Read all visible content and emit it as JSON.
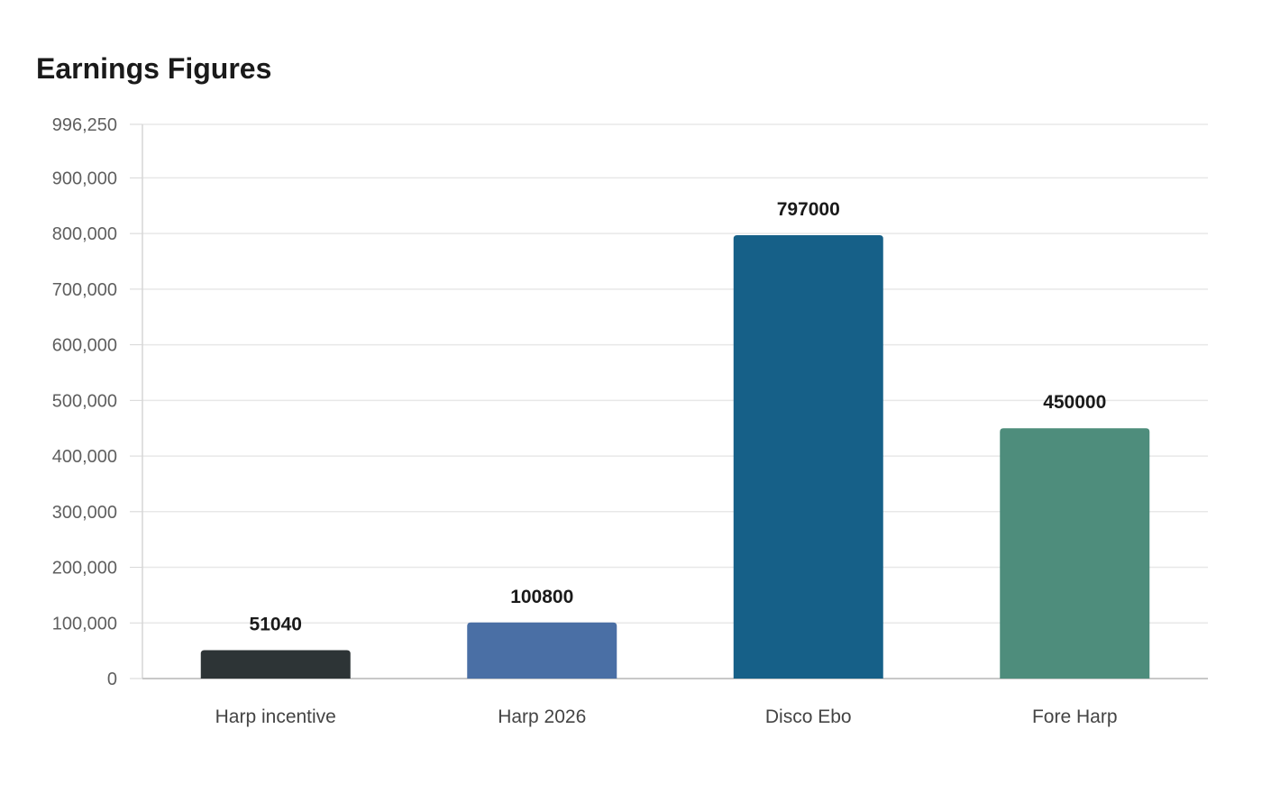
{
  "chart_data": {
    "type": "bar",
    "title": "Earnings Figures",
    "xlabel": "",
    "ylabel": "",
    "categories": [
      "Harp incentive",
      "Harp 2026",
      "Disco Ebo",
      "Fore Harp"
    ],
    "values": [
      51040,
      100800,
      797000,
      450000
    ],
    "value_labels": [
      "51040",
      "100800",
      "797000",
      "450000"
    ],
    "colors": [
      "#2d3436",
      "#4a6fa5",
      "#166088",
      "#4e8d7c"
    ],
    "ylim": [
      0,
      996250
    ],
    "yticks": [
      0,
      100000,
      200000,
      300000,
      400000,
      500000,
      600000,
      700000,
      800000,
      900000,
      996250
    ],
    "ytick_labels": [
      "0",
      "100,000",
      "200,000",
      "300,000",
      "400,000",
      "500,000",
      "600,000",
      "700,000",
      "800,000",
      "900,000",
      "996,250"
    ],
    "grid": true,
    "legend": "none"
  }
}
